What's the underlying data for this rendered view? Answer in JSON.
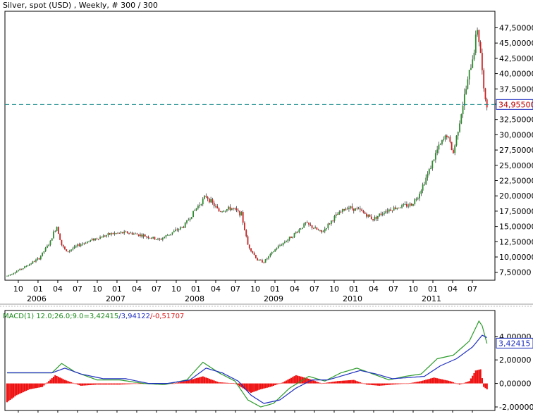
{
  "title": "Silver, spot (USD) , Weekly, # 300 / 300",
  "colors": {
    "background": "#ffffff",
    "frame": "#000000",
    "up_candle": "#2e8b2e",
    "down_candle": "#cc2222",
    "last_price_line": "#1f8f8f",
    "last_price_text": "#c00000",
    "macd_line": "#2a9a2a",
    "signal_line": "#1f2fbf",
    "histogram": "#ee1111"
  },
  "chart_data": [
    {
      "type": "candlestick",
      "title": "Silver, spot (USD) , Weekly, # 300 / 300",
      "ylim": [
        6.2,
        50.2
      ],
      "y_ticks": [
        "7,50000",
        "10,00000",
        "12,50000",
        "15,00000",
        "17,50000",
        "20,00000",
        "22,50000",
        "25,00000",
        "27,50000",
        "30,00000",
        "32,50000",
        "35,00000",
        "37,50000",
        "40,00000",
        "42,50000",
        "45,00000",
        "47,50000"
      ],
      "x_tick_labels": [
        "10",
        "01",
        "04",
        "07",
        "10",
        "01",
        "04",
        "07",
        "10",
        "01",
        "04",
        "07",
        "10",
        "01",
        "04",
        "07",
        "10",
        "01",
        "04",
        "07",
        "10",
        "01",
        "04",
        "07"
      ],
      "year_labels": [
        "2006",
        "2007",
        "2008",
        "2009",
        "2010",
        "2011"
      ],
      "last_price": 34.955,
      "last_price_label": "34,95500",
      "price_path_keypoints": [
        [
          0,
          6.9
        ],
        [
          10,
          8.2
        ],
        [
          20,
          9.8
        ],
        [
          27,
          12.5
        ],
        [
          29,
          14.0
        ],
        [
          31,
          15.0
        ],
        [
          34,
          12.0
        ],
        [
          37,
          10.8
        ],
        [
          45,
          12.0
        ],
        [
          55,
          13.0
        ],
        [
          65,
          13.8
        ],
        [
          75,
          14.0
        ],
        [
          85,
          13.5
        ],
        [
          95,
          12.8
        ],
        [
          100,
          13.6
        ],
        [
          110,
          15.0
        ],
        [
          118,
          18.0
        ],
        [
          124,
          20.0
        ],
        [
          132,
          17.5
        ],
        [
          140,
          18.0
        ],
        [
          146,
          17.0
        ],
        [
          150,
          12.0
        ],
        [
          156,
          9.5
        ],
        [
          160,
          9.2
        ],
        [
          168,
          11.5
        ],
        [
          178,
          13.5
        ],
        [
          186,
          15.5
        ],
        [
          196,
          14.0
        ],
        [
          204,
          16.5
        ],
        [
          212,
          18.2
        ],
        [
          220,
          17.6
        ],
        [
          228,
          16.2
        ],
        [
          236,
          17.6
        ],
        [
          244,
          18.2
        ],
        [
          252,
          18.6
        ],
        [
          256,
          20.0
        ],
        [
          262,
          23.5
        ],
        [
          268,
          27.5
        ],
        [
          274,
          30.0
        ],
        [
          278,
          27.0
        ],
        [
          284,
          35.0
        ],
        [
          288,
          40.0
        ],
        [
          291,
          44.0
        ],
        [
          293,
          47.5
        ],
        [
          295,
          43.5
        ],
        [
          297,
          37.0
        ],
        [
          299,
          34.96
        ]
      ]
    },
    {
      "type": "line",
      "title": "MACD(1) 12.0;26.0;9.0",
      "ylim": [
        -2.3,
        6.2
      ],
      "y_ticks": [
        "-2,00000",
        "0,00000",
        "2,00000",
        "4,00000"
      ],
      "macd_value_label": "3,42415",
      "series": [
        {
          "name": "MACD",
          "values_keypoints": [
            [
              0,
              0.9
            ],
            [
              14,
              0.9
            ],
            [
              28,
              0.9
            ],
            [
              34,
              1.7
            ],
            [
              42,
              1.0
            ],
            [
              56,
              0.3
            ],
            [
              70,
              0.3
            ],
            [
              85,
              0.0
            ],
            [
              98,
              -0.1
            ],
            [
              112,
              0.3
            ],
            [
              122,
              1.8
            ],
            [
              132,
              0.9
            ],
            [
              142,
              0.2
            ],
            [
              150,
              -1.4
            ],
            [
              158,
              -2.0
            ],
            [
              166,
              -1.7
            ],
            [
              176,
              -0.4
            ],
            [
              188,
              0.6
            ],
            [
              198,
              0.2
            ],
            [
              208,
              0.9
            ],
            [
              218,
              1.3
            ],
            [
              228,
              0.8
            ],
            [
              238,
              0.3
            ],
            [
              248,
              0.6
            ],
            [
              258,
              0.8
            ],
            [
              268,
              2.1
            ],
            [
              278,
              2.4
            ],
            [
              288,
              3.6
            ],
            [
              294,
              5.3
            ],
            [
              296,
              4.9
            ],
            [
              299,
              3.4
            ]
          ]
        },
        {
          "name": "Signal",
          "values_keypoints": [
            [
              0,
              0.9
            ],
            [
              28,
              0.9
            ],
            [
              36,
              1.3
            ],
            [
              46,
              0.8
            ],
            [
              60,
              0.4
            ],
            [
              74,
              0.4
            ],
            [
              88,
              0.0
            ],
            [
              100,
              0.0
            ],
            [
              114,
              0.3
            ],
            [
              124,
              1.3
            ],
            [
              134,
              0.9
            ],
            [
              144,
              0.2
            ],
            [
              152,
              -1.0
            ],
            [
              160,
              -1.7
            ],
            [
              170,
              -1.4
            ],
            [
              180,
              -0.4
            ],
            [
              190,
              0.3
            ],
            [
              200,
              0.3
            ],
            [
              210,
              0.7
            ],
            [
              220,
              1.1
            ],
            [
              230,
              0.8
            ],
            [
              240,
              0.4
            ],
            [
              250,
              0.5
            ],
            [
              260,
              0.6
            ],
            [
              270,
              1.5
            ],
            [
              280,
              2.1
            ],
            [
              290,
              3.1
            ],
            [
              296,
              4.1
            ],
            [
              299,
              3.9
            ]
          ]
        }
      ],
      "histogram_keypoints": [
        [
          0,
          -1.6
        ],
        [
          6,
          -1.0
        ],
        [
          14,
          -0.5
        ],
        [
          22,
          -0.3
        ],
        [
          30,
          0.7
        ],
        [
          36,
          0.3
        ],
        [
          46,
          -0.2
        ],
        [
          56,
          -0.1
        ],
        [
          70,
          -0.1
        ],
        [
          84,
          0.0
        ],
        [
          94,
          0.0
        ],
        [
          104,
          0.0
        ],
        [
          114,
          0.3
        ],
        [
          122,
          0.6
        ],
        [
          132,
          0.1
        ],
        [
          142,
          0.0
        ],
        [
          148,
          -0.5
        ],
        [
          152,
          -0.8
        ],
        [
          158,
          -0.5
        ],
        [
          164,
          -0.3
        ],
        [
          172,
          0.1
        ],
        [
          180,
          0.7
        ],
        [
          188,
          0.4
        ],
        [
          196,
          0.0
        ],
        [
          206,
          0.2
        ],
        [
          216,
          0.3
        ],
        [
          224,
          -0.1
        ],
        [
          232,
          -0.2
        ],
        [
          240,
          -0.1
        ],
        [
          250,
          0.0
        ],
        [
          258,
          0.2
        ],
        [
          266,
          0.5
        ],
        [
          276,
          0.2
        ],
        [
          282,
          -0.1
        ],
        [
          288,
          0.2
        ],
        [
          292,
          1.1
        ],
        [
          295,
          1.2
        ],
        [
          297,
          -0.3
        ],
        [
          299,
          -0.5
        ]
      ]
    }
  ],
  "macd_header": {
    "prefix": "MACD(1) 12.0;26.0;9.0=",
    "macd": "3,42415",
    "signal": "/3,94122",
    "hist": "/-0,51707"
  }
}
